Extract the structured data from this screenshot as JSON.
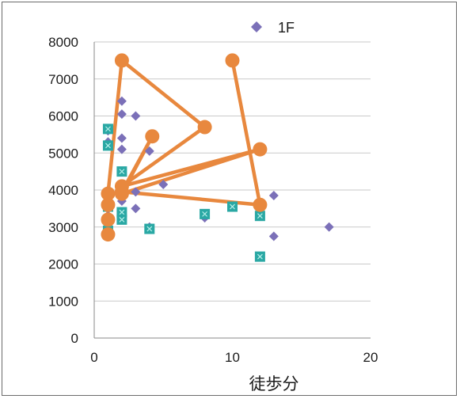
{
  "chart_data": {
    "type": "scatter",
    "xlabel": "徒歩分",
    "ylabel": "",
    "xlim": [
      0,
      20
    ],
    "ylim": [
      0,
      8000
    ],
    "xticks": [
      "0",
      "10",
      "20"
    ],
    "yticks": [
      "0",
      "1000",
      "2000",
      "3000",
      "4000",
      "5000",
      "6000",
      "7000",
      "8000"
    ],
    "grid": "horizontal",
    "legend": {
      "position": "top-right",
      "entries": [
        "1F"
      ]
    },
    "series": [
      {
        "name": "1F",
        "marker": "diamond",
        "color": "#7b70b8",
        "points": [
          [
            1,
            5600
          ],
          [
            1,
            5300
          ],
          [
            1,
            3700
          ],
          [
            1,
            3300
          ],
          [
            1,
            3000
          ],
          [
            2,
            7500
          ],
          [
            2,
            6400
          ],
          [
            2,
            6050
          ],
          [
            2,
            5400
          ],
          [
            2,
            5100
          ],
          [
            2,
            4000
          ],
          [
            2,
            3700
          ],
          [
            2,
            3400
          ],
          [
            3,
            6000
          ],
          [
            3,
            3950
          ],
          [
            3,
            3500
          ],
          [
            4,
            5050
          ],
          [
            4,
            3000
          ],
          [
            5,
            4150
          ],
          [
            8,
            3250
          ],
          [
            10,
            3550
          ],
          [
            12,
            3600
          ],
          [
            12,
            3300
          ],
          [
            13,
            3850
          ],
          [
            13,
            2750
          ],
          [
            17,
            3000
          ]
        ]
      },
      {
        "marker": "square",
        "color": "#2aa8a4",
        "points": [
          [
            1,
            5650
          ],
          [
            1,
            5200
          ],
          [
            1,
            3550
          ],
          [
            1,
            2900
          ],
          [
            2,
            4500
          ],
          [
            2,
            3400
          ],
          [
            2,
            3200
          ],
          [
            4,
            2950
          ],
          [
            8,
            3350
          ],
          [
            10,
            3550
          ],
          [
            12,
            3300
          ],
          [
            12,
            2200
          ]
        ]
      },
      {
        "marker": "circle",
        "color": "#e8883e",
        "connected": true,
        "points": [
          [
            1,
            2800
          ],
          [
            1,
            3200
          ],
          [
            1,
            3600
          ],
          [
            1,
            3900
          ],
          [
            2,
            7500
          ],
          [
            8,
            5700
          ],
          [
            2,
            4100
          ],
          [
            12,
            5100
          ],
          [
            2,
            3900
          ],
          [
            4.2,
            5450
          ],
          [
            2,
            3950
          ],
          [
            12,
            3600
          ],
          [
            10,
            7500
          ]
        ]
      }
    ]
  }
}
